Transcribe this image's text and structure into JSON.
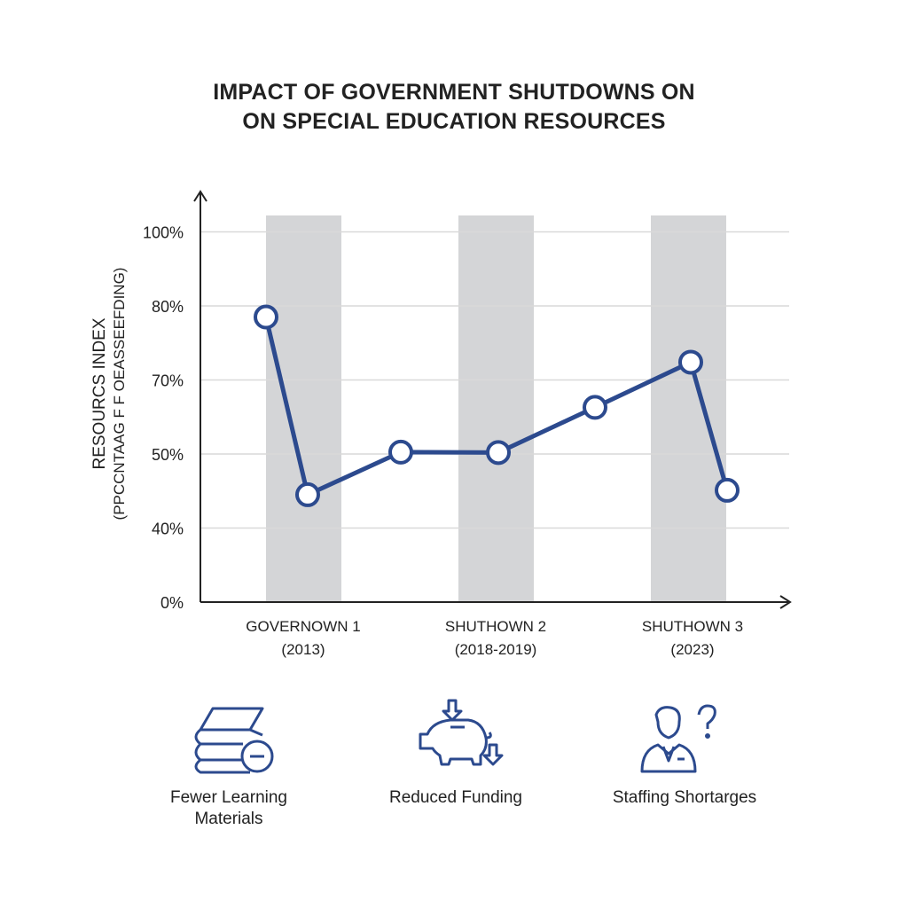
{
  "title_lines": [
    "IMPACT OF GOVERNMENT SHUTDOWNS ON",
    "ON SPECIAL EDUCATION RESOURCES"
  ],
  "chart_data": {
    "type": "line",
    "ylabel": "RESOURCS INDEX",
    "ylabel_sub": "(PPCCNTAAG F F OEASSEEFDING)",
    "y_ticks": [
      "0%",
      "40%",
      "50%",
      "70%",
      "80%",
      "100%"
    ],
    "y_tick_values": [
      0,
      40,
      50,
      70,
      80,
      100
    ],
    "y_scale": "categorical-equal-spacing",
    "x_labels": [
      {
        "line1": "GOVERNOWN 1",
        "line2": "(2013)"
      },
      {
        "line1": "SHUTHOWN 2",
        "line2": "(2018-2019)"
      },
      {
        "line1": "SHUTHOWN 3",
        "line2": "(2023)"
      }
    ],
    "shaded_bands": [
      "GOVERNOWN 1 (2013)",
      "SHUTHOWN 2 (2018-2019)",
      "SHUTHOWN 3 (2023)"
    ],
    "series": [
      {
        "values": [
          78.5,
          44.5,
          50.5,
          50.4,
          62.6,
          72.4,
          45.1
        ]
      }
    ],
    "grid": true,
    "colors": {
      "line": "#2c4a8e",
      "band": "#d4d5d7",
      "grid": "#d9d9d9",
      "axis": "#222222"
    }
  },
  "impacts": [
    {
      "icon": "books-minus-icon",
      "label_lines": [
        "Fewer Learning",
        "Materials"
      ]
    },
    {
      "icon": "piggy-bank-down-icon",
      "label_lines": [
        "Reduced Funding"
      ]
    },
    {
      "icon": "staff-question-icon",
      "label_lines": [
        "Staffing Shortarges"
      ]
    }
  ]
}
